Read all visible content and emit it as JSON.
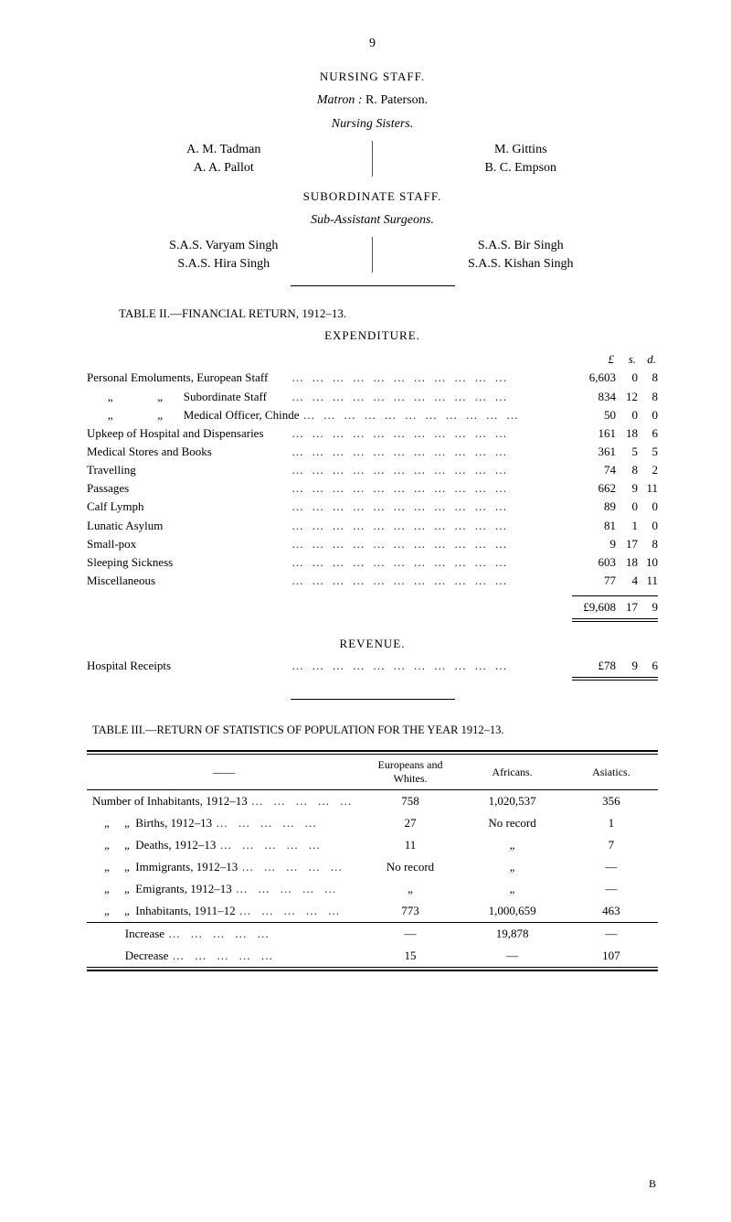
{
  "page_number": "9",
  "nursing_staff": {
    "title": "NURSING STAFF.",
    "matron_label": "Matron :",
    "matron_name": "R. Paterson.",
    "sisters_label": "Nursing Sisters.",
    "left": [
      "A. M. Tadman",
      "A. A. Pallot"
    ],
    "right": [
      "M. Gittins",
      "B. C. Empson"
    ]
  },
  "subordinate_staff": {
    "title": "SUBORDINATE STAFF.",
    "sub_label": "Sub-Assistant Surgeons.",
    "left": [
      "S.A.S. Varyam Singh",
      "S.A.S. Hira Singh"
    ],
    "right": [
      "S.A.S. Bir Singh",
      "S.A.S. Kishan Singh"
    ]
  },
  "table2": {
    "title": "TABLE II.—FINANCIAL RETURN, 1912–13.",
    "expenditure_title": "EXPENDITURE.",
    "lsd": {
      "l": "£",
      "s": "s.",
      "d": "d."
    },
    "rows": [
      {
        "label": "Personal Emoluments, European Staff",
        "l": "6,603",
        "s": "0",
        "d": "8"
      },
      {
        "label": "       „               „       Subordinate Staff",
        "l": "834",
        "s": "12",
        "d": "8"
      },
      {
        "label": "       „               „       Medical Officer, Chinde",
        "l": "50",
        "s": "0",
        "d": "0"
      },
      {
        "label": "Upkeep of Hospital and Dispensaries",
        "l": "161",
        "s": "18",
        "d": "6"
      },
      {
        "label": "Medical Stores and Books",
        "l": "361",
        "s": "5",
        "d": "5"
      },
      {
        "label": "Travelling",
        "l": "74",
        "s": "8",
        "d": "2"
      },
      {
        "label": "Passages",
        "l": "662",
        "s": "9",
        "d": "11"
      },
      {
        "label": "Calf Lymph",
        "l": "89",
        "s": "0",
        "d": "0"
      },
      {
        "label": "Lunatic Asylum",
        "l": "81",
        "s": "1",
        "d": "0"
      },
      {
        "label": "Small-pox",
        "l": "9",
        "s": "17",
        "d": "8"
      },
      {
        "label": "Sleeping Sickness",
        "l": "603",
        "s": "18",
        "d": "10"
      },
      {
        "label": "Miscellaneous",
        "l": "77",
        "s": "4",
        "d": "11"
      }
    ],
    "total": {
      "l": "£9,608",
      "s": "17",
      "d": "9"
    },
    "revenue_title": "REVENUE.",
    "revenue_row": {
      "label": "Hospital Receipts",
      "l": "£78",
      "s": "9",
      "d": "6"
    }
  },
  "table3": {
    "title": "TABLE III.—RETURN OF STATISTICS OF POPULATION FOR THE YEAR 1912–13.",
    "columns": {
      "dash": "——",
      "eur": "Europeans and Whites.",
      "afr": "Africans.",
      "asi": "Asiatics."
    },
    "rows": [
      {
        "desc": "Number of Inhabitants, 1912–13",
        "eur": "758",
        "afr": "1,020,537",
        "asi": "356"
      },
      {
        "desc": "    „     „  Births, 1912–13",
        "eur": "27",
        "afr": "No record",
        "asi": "1"
      },
      {
        "desc": "    „     „  Deaths, 1912–13",
        "eur": "11",
        "afr": "„",
        "asi": "7"
      },
      {
        "desc": "    „     „  Immigrants, 1912–13",
        "eur": "No record",
        "afr": "„",
        "asi": "—"
      },
      {
        "desc": "    „     „  Emigrants, 1912–13",
        "eur": "„",
        "afr": "„",
        "asi": "—"
      },
      {
        "desc": "    „     „  Inhabitants, 1911–12",
        "eur": "773",
        "afr": "1,000,659",
        "asi": "463"
      }
    ],
    "footer": [
      {
        "desc": "           Increase",
        "eur": "—",
        "afr": "19,878",
        "asi": "—"
      },
      {
        "desc": "           Decrease",
        "eur": "15",
        "afr": "—",
        "asi": "107"
      }
    ]
  },
  "footer_mark": "B",
  "style": {
    "background": "#ffffff",
    "font_family": "Times New Roman",
    "text_color": "#000000",
    "dots": "…   …   …   …   …   …   …   …   …   …   …"
  }
}
